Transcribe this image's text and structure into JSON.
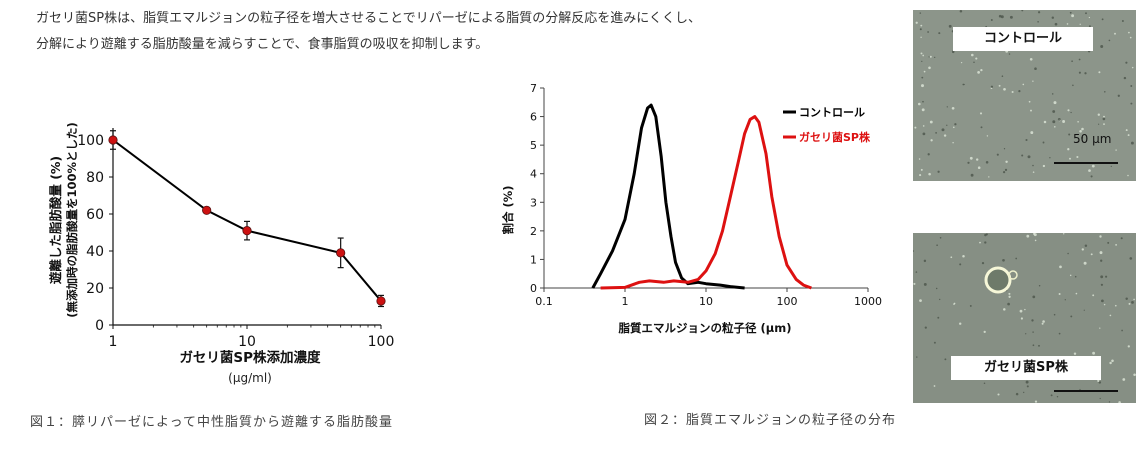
{
  "intro": {
    "line1": "ガセリ菌SP株は、脂質エマルジョンの粒子径を増大させることでリパーゼによる脂質の分解反応を進みにくくし、",
    "line2": "分解により遊離する脂肪酸量を減らすことで、食事脂質の吸収を抑制します。"
  },
  "figure1": {
    "caption": "図１：膵リパーゼによって中性脂質から遊離する脂肪酸量"
  },
  "figure2": {
    "caption": "図２：脂質エマルジョンの粒子径の分布"
  },
  "photos": {
    "control_label": "コントロール",
    "scale_label": "50 μm",
    "sp_label": "ガセリ菌SP株"
  },
  "chart_data": [
    {
      "type": "scatter",
      "log_x": true,
      "xlim": [
        1,
        100
      ],
      "ylim": [
        0,
        100
      ],
      "x_ticks": [
        "1",
        "10",
        "100"
      ],
      "y_ticks": [
        "0",
        "20",
        "40",
        "60",
        "80",
        "100"
      ],
      "xlabel": "ガセリ菌SP株添加濃度",
      "xunit": "(μg/ml)",
      "ylabel": "遊離した脂肪酸量 (%)",
      "ylabel2": "(無添加時の脂肪酸量を100%とした)",
      "marker_color": "#cc1111",
      "line_color": "#000000",
      "x": [
        1,
        5,
        10,
        50,
        100
      ],
      "y": [
        100,
        62,
        51,
        39,
        13
      ],
      "error": [
        5,
        1,
        5,
        8,
        3
      ]
    },
    {
      "type": "line",
      "log_x": true,
      "xlim": [
        0.1,
        1000
      ],
      "ylim": [
        0,
        7
      ],
      "x_ticks": [
        "0.1",
        "1",
        "10",
        "100",
        "1000"
      ],
      "y_ticks": [
        "0",
        "1",
        "2",
        "3",
        "4",
        "5",
        "6",
        "7"
      ],
      "xlabel": "脂質エマルジョンの粒子径 (μm)",
      "ylabel": "割合 (%)",
      "series": [
        {
          "name": "コントロール",
          "color": "#000000",
          "x": [
            0.4,
            0.5,
            0.7,
            1.0,
            1.3,
            1.6,
            1.9,
            2.1,
            2.4,
            2.8,
            3.2,
            3.7,
            4.2,
            5.0,
            6.0,
            8.0,
            10,
            15,
            20,
            25,
            30
          ],
          "y": [
            0.0,
            0.5,
            1.3,
            2.4,
            4.0,
            5.6,
            6.3,
            6.4,
            6.0,
            4.6,
            3.0,
            1.8,
            0.9,
            0.35,
            0.15,
            0.2,
            0.15,
            0.1,
            0.05,
            0.02,
            0.0
          ]
        },
        {
          "name": "ガセリ菌SP株",
          "color": "#dd1111",
          "x": [
            0.5,
            1.0,
            1.5,
            2.0,
            3.0,
            4.0,
            6.0,
            8.0,
            10,
            13,
            16,
            20,
            25,
            30,
            35,
            40,
            45,
            55,
            65,
            80,
            100,
            130,
            160,
            200
          ],
          "y": [
            0.0,
            0.02,
            0.2,
            0.25,
            0.2,
            0.25,
            0.2,
            0.3,
            0.6,
            1.2,
            2.0,
            3.2,
            4.4,
            5.4,
            5.9,
            6.0,
            5.8,
            4.7,
            3.2,
            1.8,
            0.8,
            0.3,
            0.1,
            0.0
          ]
        }
      ],
      "legend_position": "top-right"
    }
  ]
}
